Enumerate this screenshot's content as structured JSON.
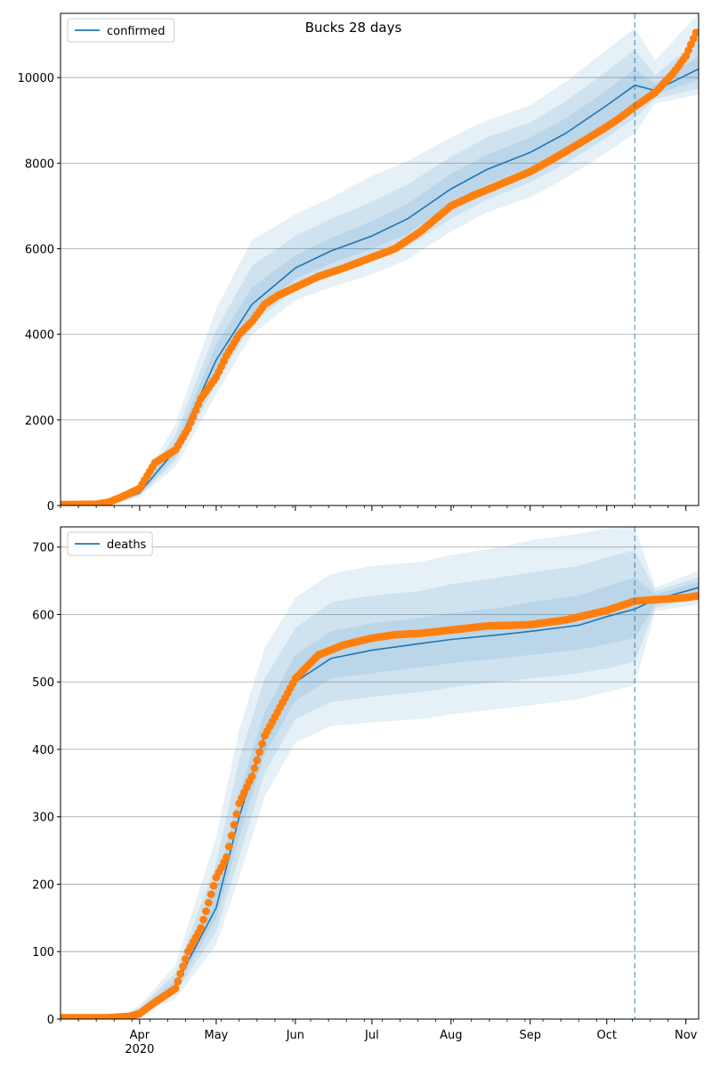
{
  "title": "Bucks 28 days",
  "colors": {
    "model": "#1f77b4",
    "observed": "#ff7f0e",
    "grid": "#b0b0b0",
    "band": "#1f77b4"
  },
  "x_axis": {
    "start": "2020-03-01",
    "end": "2020-11-06",
    "month_labels": [
      {
        "date": "2020-04-01",
        "label": "Apr",
        "sub": "2020"
      },
      {
        "date": "2020-05-01",
        "label": "May"
      },
      {
        "date": "2020-06-01",
        "label": "Jun"
      },
      {
        "date": "2020-07-01",
        "label": "Jul"
      },
      {
        "date": "2020-08-01",
        "label": "Aug"
      },
      {
        "date": "2020-09-01",
        "label": "Sep"
      },
      {
        "date": "2020-10-01",
        "label": "Oct"
      },
      {
        "date": "2020-11-01",
        "label": "Nov"
      }
    ]
  },
  "chart_data": [
    {
      "type": "line",
      "legend": [
        "confirmed"
      ],
      "legend_position": "top-left",
      "grid": "horizontal",
      "ylim": [
        0,
        11500
      ],
      "yticks": [
        0,
        2000,
        4000,
        6000,
        8000,
        10000
      ],
      "forecast_start": "2020-10-12",
      "model": {
        "name": "confirmed",
        "x": [
          "2020-03-01",
          "2020-03-20",
          "2020-04-01",
          "2020-04-15",
          "2020-05-01",
          "2020-05-15",
          "2020-06-01",
          "2020-06-15",
          "2020-07-01",
          "2020-07-15",
          "2020-08-01",
          "2020-08-15",
          "2020-09-01",
          "2020-09-15",
          "2020-10-01",
          "2020-10-12",
          "2020-10-20",
          "2020-11-06"
        ],
        "y": [
          0,
          20,
          300,
          1300,
          3400,
          4700,
          5550,
          5950,
          6300,
          6700,
          7400,
          7850,
          8250,
          8700,
          9350,
          9820,
          9700,
          10200
        ],
        "bands": [
          {
            "x": [
              "2020-03-01",
              "2020-03-20",
              "2020-04-01",
              "2020-04-15",
              "2020-05-01",
              "2020-05-15",
              "2020-06-01",
              "2020-06-15",
              "2020-07-01",
              "2020-07-15",
              "2020-08-01",
              "2020-08-15",
              "2020-09-01",
              "2020-09-15",
              "2020-10-01",
              "2020-10-12",
              "2020-10-20",
              "2020-11-06"
            ],
            "lower": [
              0,
              10,
              200,
              900,
              2600,
              4000,
              4800,
              5100,
              5400,
              5750,
              6400,
              6850,
              7200,
              7650,
              8250,
              8700,
              9400,
              9600
            ],
            "upper": [
              0,
              40,
              450,
              1900,
              4600,
              6200,
              6800,
              7200,
              7700,
              8050,
              8600,
              9000,
              9350,
              9900,
              10650,
              11150,
              10400,
              11500
            ]
          },
          {
            "x": [
              "2020-03-01",
              "2020-03-20",
              "2020-04-01",
              "2020-04-15",
              "2020-05-01",
              "2020-05-15",
              "2020-06-01",
              "2020-06-15",
              "2020-07-01",
              "2020-07-15",
              "2020-08-01",
              "2020-08-15",
              "2020-09-01",
              "2020-09-15",
              "2020-10-01",
              "2020-10-12",
              "2020-10-20",
              "2020-11-06"
            ],
            "lower": [
              0,
              12,
              230,
              1050,
              2850,
              4250,
              5050,
              5400,
              5700,
              6050,
              6700,
              7150,
              7550,
              8000,
              8600,
              9050,
              9500,
              9750
            ],
            "upper": [
              0,
              32,
              400,
              1650,
              4100,
              5600,
              6300,
              6700,
              7100,
              7500,
              8150,
              8600,
              8950,
              9450,
              10150,
              10650,
              10050,
              10900
            ]
          },
          {
            "x": [
              "2020-03-01",
              "2020-03-20",
              "2020-04-01",
              "2020-04-15",
              "2020-05-01",
              "2020-05-15",
              "2020-06-01",
              "2020-06-15",
              "2020-07-01",
              "2020-07-15",
              "2020-08-01",
              "2020-08-15",
              "2020-09-01",
              "2020-09-15",
              "2020-10-01",
              "2020-10-12",
              "2020-10-20",
              "2020-11-06"
            ],
            "lower": [
              0,
              15,
              260,
              1150,
              3100,
              4450,
              5300,
              5650,
              6000,
              6350,
              7050,
              7500,
              7900,
              8350,
              8950,
              9400,
              9600,
              9950
            ],
            "upper": [
              0,
              28,
              350,
              1450,
              3750,
              5100,
              5850,
              6250,
              6650,
              7050,
              7750,
              8200,
              8600,
              9050,
              9700,
              10200,
              9850,
              10500
            ]
          }
        ]
      },
      "observed": {
        "x": [
          "2020-03-01",
          "2020-03-15",
          "2020-03-20",
          "2020-03-25",
          "2020-04-01",
          "2020-04-07",
          "2020-04-15",
          "2020-04-20",
          "2020-04-25",
          "2020-05-01",
          "2020-05-05",
          "2020-05-10",
          "2020-05-15",
          "2020-05-20",
          "2020-05-25",
          "2020-06-01",
          "2020-06-10",
          "2020-06-20",
          "2020-07-01",
          "2020-07-10",
          "2020-07-20",
          "2020-08-01",
          "2020-08-10",
          "2020-08-20",
          "2020-09-01",
          "2020-09-10",
          "2020-09-20",
          "2020-10-01",
          "2020-10-06",
          "2020-10-12",
          "2020-10-20",
          "2020-10-27",
          "2020-11-01",
          "2020-11-05"
        ],
        "y": [
          20,
          30,
          80,
          200,
          400,
          1000,
          1300,
          1800,
          2500,
          3000,
          3500,
          4000,
          4300,
          4700,
          4900,
          5100,
          5350,
          5550,
          5800,
          6000,
          6400,
          7000,
          7250,
          7500,
          7800,
          8100,
          8450,
          8850,
          9050,
          9320,
          9650,
          10100,
          10500,
          11050
        ]
      }
    },
    {
      "type": "line",
      "legend": [
        "deaths"
      ],
      "legend_position": "top-left",
      "grid": "horizontal",
      "ylim": [
        0,
        730
      ],
      "yticks": [
        0,
        100,
        200,
        300,
        400,
        500,
        600,
        700
      ],
      "forecast_start": "2020-10-12",
      "model": {
        "name": "deaths",
        "x": [
          "2020-03-01",
          "2020-03-25",
          "2020-04-01",
          "2020-04-15",
          "2020-05-01",
          "2020-05-10",
          "2020-05-20",
          "2020-06-01",
          "2020-06-15",
          "2020-07-01",
          "2020-07-20",
          "2020-08-01",
          "2020-08-20",
          "2020-09-01",
          "2020-09-20",
          "2020-10-01",
          "2020-10-12",
          "2020-10-20",
          "2020-11-06"
        ],
        "y": [
          0,
          2,
          12,
          50,
          165,
          300,
          420,
          500,
          535,
          547,
          557,
          563,
          570,
          575,
          584,
          597,
          608,
          622,
          640
        ],
        "bands": [
          {
            "x": [
              "2020-03-01",
              "2020-03-25",
              "2020-04-01",
              "2020-04-15",
              "2020-05-01",
              "2020-05-10",
              "2020-05-20",
              "2020-06-01",
              "2020-06-15",
              "2020-07-01",
              "2020-07-20",
              "2020-08-01",
              "2020-08-20",
              "2020-09-01",
              "2020-09-20",
              "2020-10-01",
              "2020-10-12",
              "2020-10-20",
              "2020-11-06"
            ],
            "lower": [
              0,
              1,
              6,
              30,
              110,
              210,
              330,
              410,
              435,
              440,
              445,
              452,
              460,
              465,
              475,
              485,
              495,
              605,
              615
            ],
            "upper": [
              0,
              4,
              20,
              80,
              270,
              430,
              550,
              625,
              660,
              672,
              678,
              688,
              700,
              710,
              720,
              728,
              730,
              640,
              665
            ]
          },
          {
            "x": [
              "2020-03-01",
              "2020-03-25",
              "2020-04-01",
              "2020-04-15",
              "2020-05-01",
              "2020-05-10",
              "2020-05-20",
              "2020-06-01",
              "2020-06-15",
              "2020-07-01",
              "2020-07-20",
              "2020-08-01",
              "2020-08-20",
              "2020-09-01",
              "2020-09-20",
              "2020-10-01",
              "2020-10-12",
              "2020-10-20",
              "2020-11-06"
            ],
            "lower": [
              0,
              1,
              8,
              38,
              130,
              240,
              365,
              445,
              470,
              478,
              485,
              492,
              500,
              505,
              513,
              520,
              530,
              610,
              625
            ],
            "upper": [
              0,
              3,
              17,
              68,
              230,
              385,
              505,
              580,
              618,
              628,
              635,
              645,
              655,
              662,
              672,
              685,
              695,
              635,
              655
            ]
          },
          {
            "x": [
              "2020-03-01",
              "2020-03-25",
              "2020-04-01",
              "2020-04-15",
              "2020-05-01",
              "2020-05-10",
              "2020-05-20",
              "2020-06-01",
              "2020-06-15",
              "2020-07-01",
              "2020-07-20",
              "2020-08-01",
              "2020-08-20",
              "2020-09-01",
              "2020-09-20",
              "2020-10-01",
              "2020-10-12",
              "2020-10-20",
              "2020-11-06"
            ],
            "lower": [
              0,
              1,
              10,
              44,
              148,
              270,
              392,
              472,
              505,
              513,
              522,
              528,
              535,
              540,
              548,
              556,
              565,
              615,
              632
            ],
            "upper": [
              0,
              3,
              14,
              58,
              195,
              335,
              455,
              540,
              575,
              587,
              595,
              602,
              610,
              618,
              628,
              642,
              655,
              630,
              648
            ]
          }
        ]
      },
      "observed": {
        "x": [
          "2020-03-01",
          "2020-03-20",
          "2020-03-28",
          "2020-04-01",
          "2020-04-07",
          "2020-04-15",
          "2020-04-20",
          "2020-04-25",
          "2020-05-01",
          "2020-05-05",
          "2020-05-10",
          "2020-05-15",
          "2020-05-20",
          "2020-05-25",
          "2020-06-01",
          "2020-06-10",
          "2020-06-20",
          "2020-07-01",
          "2020-07-10",
          "2020-07-20",
          "2020-08-01",
          "2020-08-15",
          "2020-09-01",
          "2020-09-15",
          "2020-10-01",
          "2020-10-12",
          "2020-10-20",
          "2020-11-01",
          "2020-11-06"
        ],
        "y": [
          2,
          2,
          4,
          8,
          25,
          45,
          100,
          135,
          210,
          240,
          320,
          360,
          420,
          455,
          505,
          540,
          555,
          565,
          570,
          572,
          577,
          583,
          585,
          592,
          606,
          620,
          622,
          625,
          628
        ]
      }
    }
  ]
}
